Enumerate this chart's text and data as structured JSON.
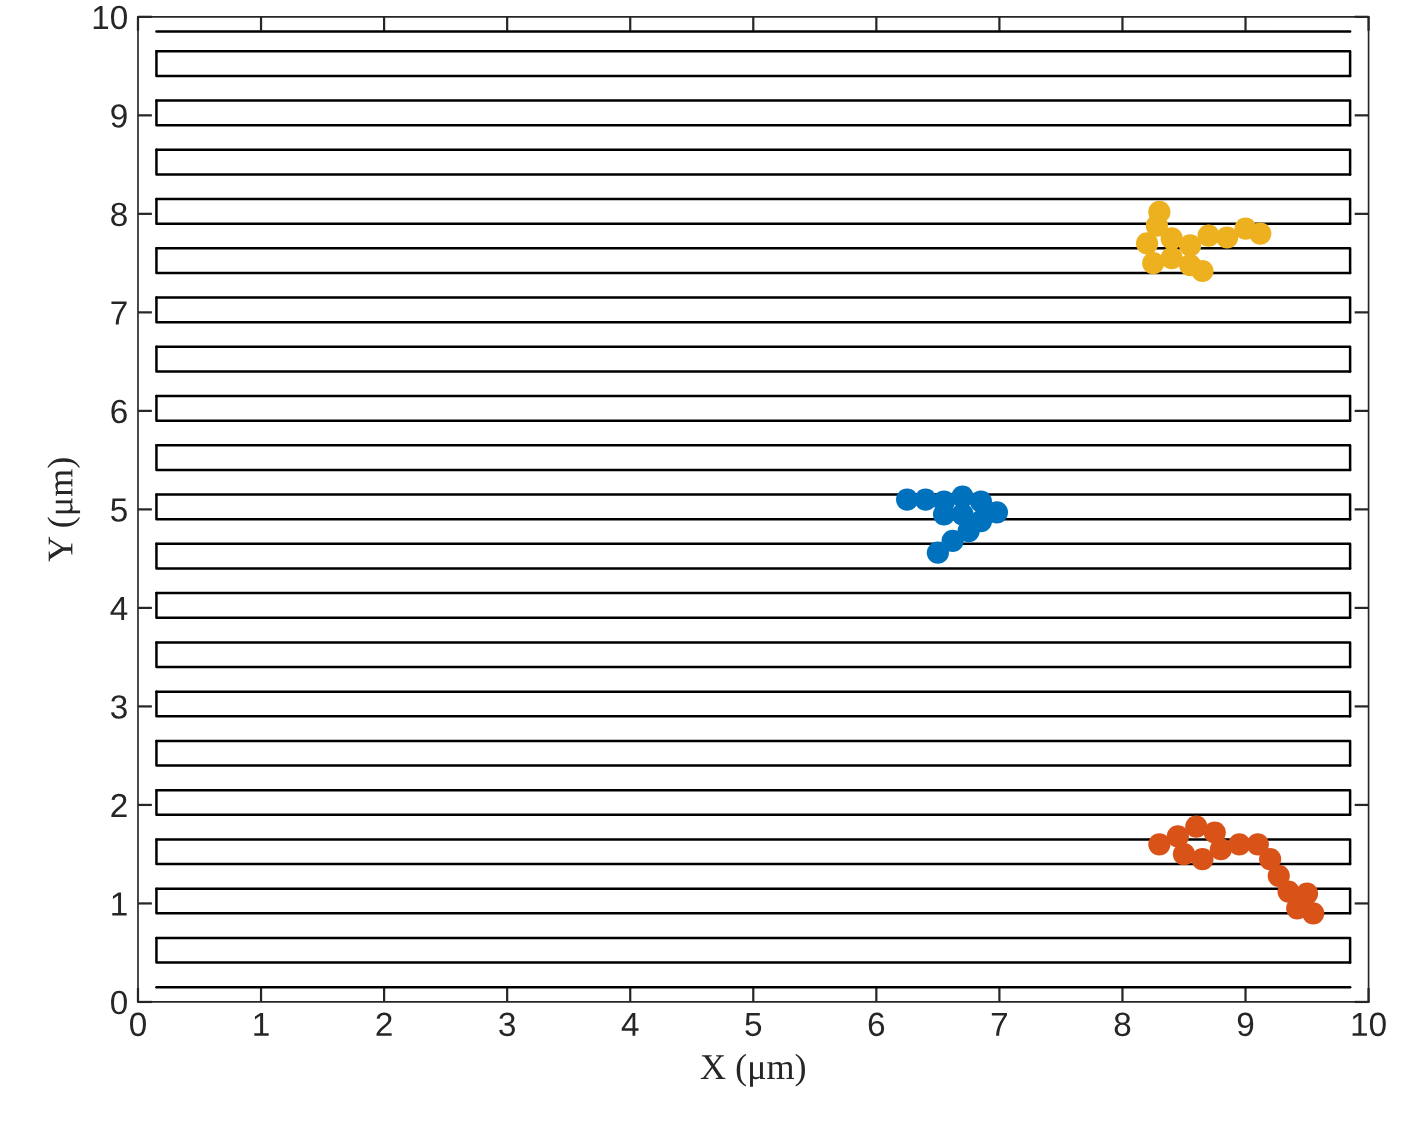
{
  "chart_data": {
    "type": "line",
    "xlabel": "X (μm)",
    "ylabel": "Y (μm)",
    "xlim": [
      0,
      10
    ],
    "ylim": [
      0,
      10
    ],
    "xticks": [
      0,
      1,
      2,
      3,
      4,
      5,
      6,
      7,
      8,
      9,
      10
    ],
    "yticks": [
      0,
      1,
      2,
      3,
      4,
      5,
      6,
      7,
      8,
      9,
      10
    ],
    "grid": false,
    "line_style": "solid",
    "series": [
      {
        "color": "#000000",
        "x": [
          0.15,
          9.85
        ],
        "values": [
          0.15,
          0.15
        ]
      },
      {
        "color": "#000000",
        "x": [
          0.15,
          0.15,
          9.85
        ],
        "values": [
          0.65,
          0.4,
          0.4
        ]
      },
      {
        "color": "#000000",
        "x": [
          0.15,
          9.85,
          9.85
        ],
        "values": [
          0.65,
          0.65,
          0.4
        ]
      },
      {
        "color": "#000000",
        "x": [
          0.15,
          0.15,
          9.85
        ],
        "values": [
          1.15,
          0.9,
          0.9
        ]
      },
      {
        "color": "#000000",
        "x": [
          0.15,
          9.85,
          9.85
        ],
        "values": [
          1.15,
          1.15,
          0.9
        ]
      },
      {
        "color": "#000000",
        "x": [
          0.15,
          0.15,
          9.85
        ],
        "values": [
          1.65,
          1.4,
          1.4
        ]
      },
      {
        "color": "#000000",
        "x": [
          0.15,
          9.85,
          9.85
        ],
        "values": [
          1.65,
          1.65,
          1.4
        ]
      },
      {
        "color": "#000000",
        "x": [
          0.15,
          0.15,
          9.85
        ],
        "values": [
          2.15,
          1.9,
          1.9
        ]
      },
      {
        "color": "#000000",
        "x": [
          0.15,
          9.85,
          9.85
        ],
        "values": [
          2.15,
          2.15,
          1.9
        ]
      },
      {
        "color": "#000000",
        "x": [
          0.15,
          0.15,
          9.85
        ],
        "values": [
          2.65,
          2.4,
          2.4
        ]
      },
      {
        "color": "#000000",
        "x": [
          0.15,
          9.85,
          9.85
        ],
        "values": [
          2.65,
          2.65,
          2.4
        ]
      },
      {
        "color": "#000000",
        "x": [
          0.15,
          0.15,
          9.85
        ],
        "values": [
          3.15,
          2.9,
          2.9
        ]
      },
      {
        "color": "#000000",
        "x": [
          0.15,
          9.85,
          9.85
        ],
        "values": [
          3.15,
          3.15,
          2.9
        ]
      },
      {
        "color": "#000000",
        "x": [
          0.15,
          0.15,
          9.85
        ],
        "values": [
          3.65,
          3.4,
          3.4
        ]
      },
      {
        "color": "#000000",
        "x": [
          0.15,
          9.85,
          9.85
        ],
        "values": [
          3.65,
          3.65,
          3.4
        ]
      },
      {
        "color": "#000000",
        "x": [
          0.15,
          0.15,
          9.85
        ],
        "values": [
          4.15,
          3.9,
          3.9
        ]
      },
      {
        "color": "#000000",
        "x": [
          0.15,
          9.85,
          9.85
        ],
        "values": [
          4.15,
          4.15,
          3.9
        ]
      },
      {
        "color": "#000000",
        "x": [
          0.15,
          0.15,
          9.85
        ],
        "values": [
          4.65,
          4.4,
          4.4
        ]
      },
      {
        "color": "#000000",
        "x": [
          0.15,
          9.85,
          9.85
        ],
        "values": [
          4.65,
          4.65,
          4.4
        ]
      },
      {
        "color": "#000000",
        "x": [
          0.15,
          0.15,
          9.85
        ],
        "values": [
          5.15,
          4.9,
          4.9
        ]
      },
      {
        "color": "#000000",
        "x": [
          0.15,
          9.85,
          9.85
        ],
        "values": [
          5.15,
          5.15,
          4.9
        ]
      },
      {
        "color": "#000000",
        "x": [
          0.15,
          0.15,
          9.85
        ],
        "values": [
          5.65,
          5.4,
          5.4
        ]
      },
      {
        "color": "#000000",
        "x": [
          0.15,
          9.85,
          9.85
        ],
        "values": [
          5.65,
          5.65,
          5.4
        ]
      },
      {
        "color": "#000000",
        "x": [
          0.15,
          0.15,
          9.85
        ],
        "values": [
          6.15,
          5.9,
          5.9
        ]
      },
      {
        "color": "#000000",
        "x": [
          0.15,
          9.85,
          9.85
        ],
        "values": [
          6.15,
          6.15,
          5.9
        ]
      },
      {
        "color": "#000000",
        "x": [
          0.15,
          0.15,
          9.85
        ],
        "values": [
          6.65,
          6.4,
          6.4
        ]
      },
      {
        "color": "#000000",
        "x": [
          0.15,
          9.85,
          9.85
        ],
        "values": [
          6.65,
          6.65,
          6.4
        ]
      },
      {
        "color": "#000000",
        "x": [
          0.15,
          0.15,
          9.85
        ],
        "values": [
          7.15,
          6.9,
          6.9
        ]
      },
      {
        "color": "#000000",
        "x": [
          0.15,
          9.85,
          9.85
        ],
        "values": [
          7.15,
          7.15,
          6.9
        ]
      },
      {
        "color": "#000000",
        "x": [
          0.15,
          0.15,
          9.85
        ],
        "values": [
          7.65,
          7.4,
          7.4
        ]
      },
      {
        "color": "#000000",
        "x": [
          0.15,
          9.85,
          9.85
        ],
        "values": [
          7.65,
          7.65,
          7.4
        ]
      },
      {
        "color": "#000000",
        "x": [
          0.15,
          0.15,
          9.85
        ],
        "values": [
          8.15,
          7.9,
          7.9
        ]
      },
      {
        "color": "#000000",
        "x": [
          0.15,
          9.85,
          9.85
        ],
        "values": [
          8.15,
          8.15,
          7.9
        ]
      },
      {
        "color": "#000000",
        "x": [
          0.15,
          0.15,
          9.85
        ],
        "values": [
          8.65,
          8.4,
          8.4
        ]
      },
      {
        "color": "#000000",
        "x": [
          0.15,
          9.85,
          9.85
        ],
        "values": [
          8.65,
          8.65,
          8.4
        ]
      },
      {
        "color": "#000000",
        "x": [
          0.15,
          0.15,
          9.85
        ],
        "values": [
          9.15,
          8.9,
          8.9
        ]
      },
      {
        "color": "#000000",
        "x": [
          0.15,
          9.85,
          9.85
        ],
        "values": [
          9.15,
          9.15,
          8.9
        ]
      },
      {
        "color": "#000000",
        "x": [
          0.15,
          0.15,
          9.85
        ],
        "values": [
          9.65,
          9.4,
          9.4
        ]
      },
      {
        "color": "#000000",
        "x": [
          0.15,
          9.85,
          9.85
        ],
        "values": [
          9.65,
          9.65,
          9.4
        ]
      },
      {
        "color": "#000000",
        "x": [
          0.15,
          9.85
        ],
        "values": [
          9.85,
          9.85
        ]
      },
      {
        "type": "scatter",
        "marker": "circle",
        "color": "#0072bd",
        "x": [
          6.25,
          6.4,
          6.55,
          6.7,
          6.85,
          6.98,
          6.85,
          6.7,
          6.55,
          6.75,
          6.62,
          6.5
        ],
        "values": [
          5.1,
          5.1,
          5.08,
          5.13,
          5.08,
          4.97,
          4.88,
          4.95,
          4.95,
          4.78,
          4.68,
          4.56
        ]
      },
      {
        "type": "scatter",
        "marker": "circle",
        "color": "#d95319",
        "x": [
          8.3,
          8.45,
          8.6,
          8.75,
          8.5,
          8.65,
          8.8,
          8.95,
          9.1,
          9.2,
          9.27,
          9.35,
          9.5,
          9.42,
          9.55
        ],
        "values": [
          1.6,
          1.68,
          1.78,
          1.72,
          1.5,
          1.45,
          1.55,
          1.6,
          1.6,
          1.45,
          1.28,
          1.12,
          1.1,
          0.95,
          0.9
        ]
      },
      {
        "type": "scatter",
        "marker": "circle",
        "color": "#edb120",
        "x": [
          8.2,
          8.28,
          8.3,
          8.4,
          8.25,
          8.4,
          8.55,
          8.65,
          8.55,
          8.7,
          8.85,
          9.0,
          9.12
        ],
        "values": [
          7.7,
          7.88,
          8.02,
          7.75,
          7.5,
          7.55,
          7.48,
          7.42,
          7.68,
          7.78,
          7.76,
          7.85,
          7.8
        ]
      }
    ]
  }
}
